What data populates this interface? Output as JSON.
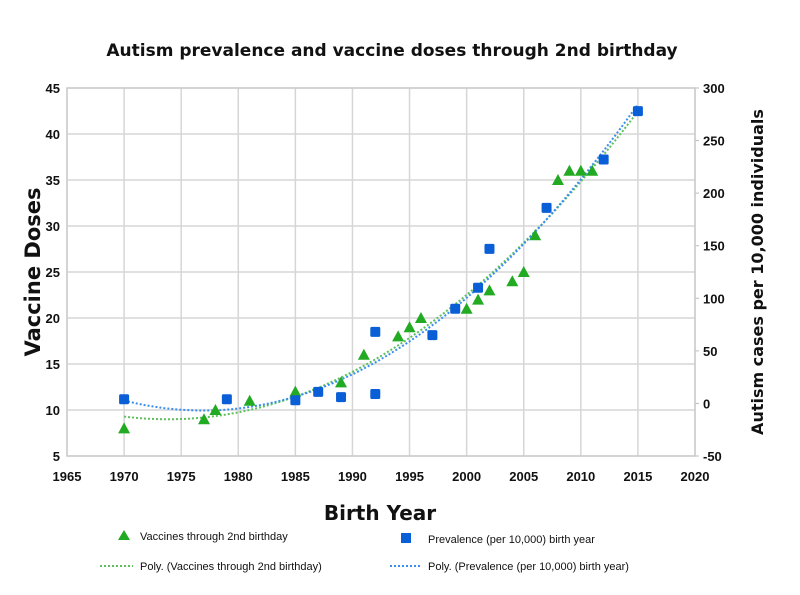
{
  "chart_data": {
    "type": "scatter",
    "title": "Autism prevalence and vaccine doses through 2nd birthday",
    "xlabel": "Birth Year",
    "ylabel": "Vaccine Doses",
    "y2label": "Autism cases per 10,000 individuals",
    "xlim": [
      1965,
      2020
    ],
    "xticks": [
      1965,
      1970,
      1975,
      1980,
      1985,
      1990,
      1995,
      2000,
      2005,
      2010,
      2015,
      2020
    ],
    "ylim": [
      5,
      45
    ],
    "yticks": [
      5,
      10,
      15,
      20,
      25,
      30,
      35,
      40,
      45
    ],
    "y2lim": [
      -50,
      300
    ],
    "y2ticks": [
      -50,
      0,
      50,
      100,
      150,
      200,
      250,
      300
    ],
    "grid": true,
    "legend_position": "bottom",
    "series": [
      {
        "name": "Vaccines through 2nd birthday",
        "axis": "left",
        "marker": "triangle",
        "color": "#22aa22",
        "x": [
          1970,
          1977,
          1978,
          1981,
          1985,
          1989,
          1991,
          1994,
          1995,
          1996,
          2000,
          2001,
          2002,
          2004,
          2005,
          2006,
          2008,
          2009,
          2010,
          2011
        ],
        "y": [
          8,
          9,
          10,
          11,
          12,
          13,
          16,
          18,
          19,
          20,
          21,
          22,
          23,
          24,
          25,
          29,
          35,
          36,
          36,
          36
        ]
      },
      {
        "name": "Prevalence (per 10,000) birth year",
        "axis": "right",
        "marker": "square",
        "color": "#0a5fd6",
        "x": [
          1970,
          1979,
          1985,
          1987,
          1989,
          1992,
          1992,
          1997,
          1999,
          2001,
          2002,
          2007,
          2012,
          2015
        ],
        "y": [
          4,
          4,
          3,
          11,
          6,
          68,
          9,
          65,
          90,
          110,
          147,
          186,
          232,
          278
        ]
      }
    ],
    "trendlines": [
      {
        "name": "Poly. (Vaccines through 2nd birthday)",
        "of": "Vaccines through 2nd birthday",
        "type": "polynomial",
        "order": 2,
        "color": "#5cc05c"
      },
      {
        "name": "Poly. (Prevalence (per 10,000) birth year)",
        "of": "Prevalence (per 10,000) birth year",
        "type": "polynomial",
        "order": 2,
        "color": "#3a8ef0"
      }
    ]
  }
}
